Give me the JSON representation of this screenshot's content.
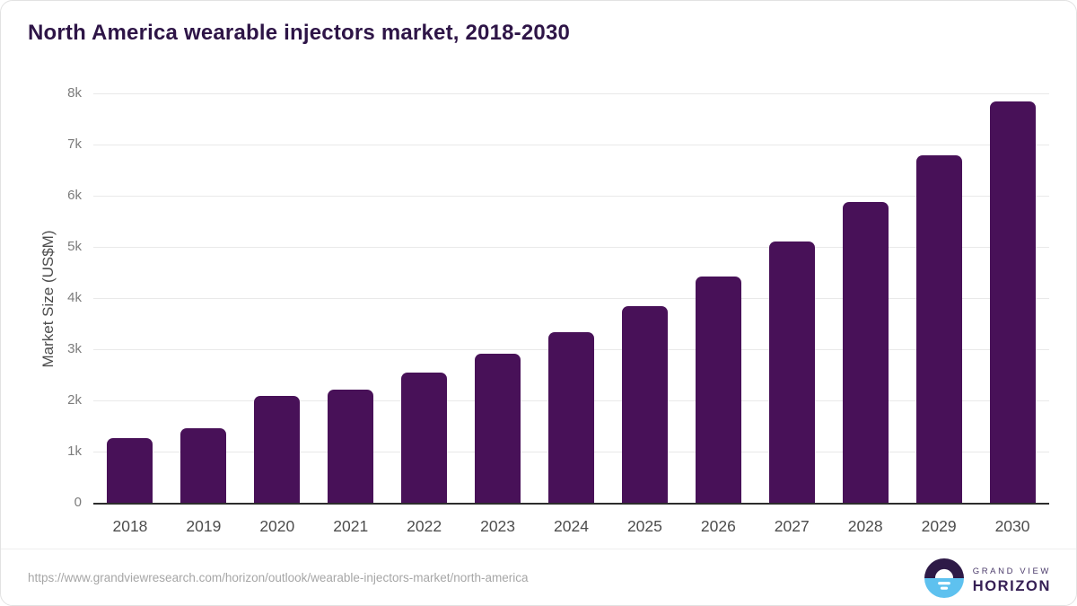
{
  "title": "North America wearable injectors market, 2018-2030",
  "chart_data": {
    "type": "bar",
    "title": "North America wearable injectors market, 2018-2030",
    "categories": [
      "2018",
      "2019",
      "2020",
      "2021",
      "2022",
      "2023",
      "2024",
      "2025",
      "2026",
      "2027",
      "2028",
      "2029",
      "2030"
    ],
    "values": [
      1260,
      1450,
      2080,
      2210,
      2540,
      2920,
      3330,
      3850,
      4420,
      5100,
      5880,
      6790,
      7840
    ],
    "xlabel": "",
    "ylabel": "Market Size (US$M)",
    "ylim": [
      0,
      8000
    ],
    "yticks": [
      0,
      1000,
      2000,
      3000,
      4000,
      5000,
      6000,
      7000,
      8000
    ],
    "ytick_labels": [
      "0",
      "1k",
      "2k",
      "3k",
      "4k",
      "5k",
      "6k",
      "7k",
      "8k"
    ],
    "grid": true,
    "legend": "none",
    "bar_color": "#481158"
  },
  "footer": {
    "source_url": "https://www.grandviewresearch.com/horizon/outlook/wearable-injectors-market/north-america",
    "logo": {
      "line1": "GRAND VIEW",
      "line2": "HORIZON",
      "mark_top_color": "#2e1a47",
      "mark_bottom_color": "#5ec1ef"
    }
  },
  "colors": {
    "title_text": "#2e1547",
    "bar": "#481158",
    "gridline": "#e9e9e9",
    "axis_line": "#2d2d2d",
    "tick_text": "#7c7c7c",
    "xlabel_text": "#4d4d4d",
    "url_text": "#a6a6a6",
    "card_border": "#e2e2e2"
  }
}
